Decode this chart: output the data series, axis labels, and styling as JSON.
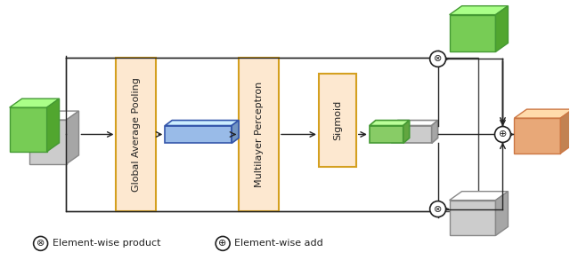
{
  "fig_width": 6.4,
  "fig_height": 2.93,
  "dpi": 100,
  "background_color": "#ffffff",
  "gap_label": "Global Average Pooling",
  "mlp_label": "Multilayer Perceptron",
  "sigmoid_label": "Sigmoid",
  "legend1_symbol": "⊗",
  "legend1_text": "Element-wise product",
  "legend2_symbol": "⊕",
  "legend2_text": "Element-wise add",
  "frame_color": "#d4a020",
  "frame_fill": "#fde8d0",
  "line_color": "#222222",
  "green_fc": "#77cc55",
  "green_ec": "#449933",
  "gray_fc": "#cccccc",
  "gray_ec": "#888888",
  "blue_fc": "#aabbdd",
  "blue_ec": "#4466aa",
  "orange_fc": "#e8a878",
  "orange_ec": "#cc7744"
}
